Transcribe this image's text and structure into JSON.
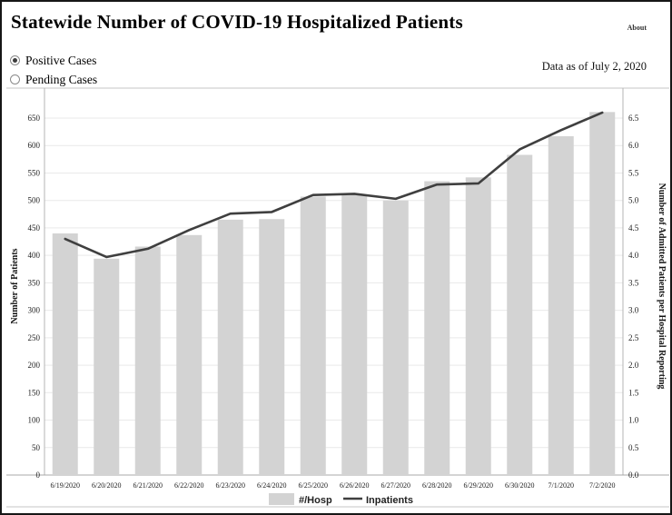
{
  "page": {
    "title": "Statewide Number of COVID-19 Hospitalized Patients",
    "about_label": "About",
    "data_as_of": "Data as of July 2, 2020"
  },
  "controls": {
    "radio_options": [
      {
        "label": "Positive Cases",
        "selected": true
      },
      {
        "label": "Pending Cases",
        "selected": false
      }
    ]
  },
  "chart_data": {
    "type": "bar",
    "title": "",
    "categories": [
      "6/19/2020",
      "6/20/2020",
      "6/21/2020",
      "6/22/2020",
      "6/23/2020",
      "6/24/2020",
      "6/25/2020",
      "6/26/2020",
      "6/27/2020",
      "6/28/2020",
      "6/29/2020",
      "6/30/2020",
      "7/1/2020",
      "7/2/2020"
    ],
    "series": [
      {
        "name": "#/Hosp",
        "type": "bar",
        "axis": "left",
        "color": "#d3d3d3",
        "values": [
          440,
          394,
          416,
          437,
          465,
          466,
          507,
          511,
          500,
          535,
          542,
          583,
          617,
          661
        ]
      },
      {
        "name": "Inpatients",
        "type": "line",
        "axis": "right",
        "color": "#3f3f3f",
        "values": [
          4.3,
          3.97,
          4.12,
          4.46,
          4.76,
          4.79,
          5.1,
          5.12,
          5.03,
          5.29,
          5.31,
          5.93,
          6.28,
          6.6
        ]
      }
    ],
    "left_axis": {
      "label": "Number of Patients",
      "min": 0,
      "max": 650,
      "step": 50
    },
    "right_axis": {
      "label": "Number of Admitted Patients per Hospital Reporting",
      "min": 0.0,
      "max": 6.5,
      "step": 0.5
    },
    "grid": true,
    "legend_position": "bottom"
  }
}
